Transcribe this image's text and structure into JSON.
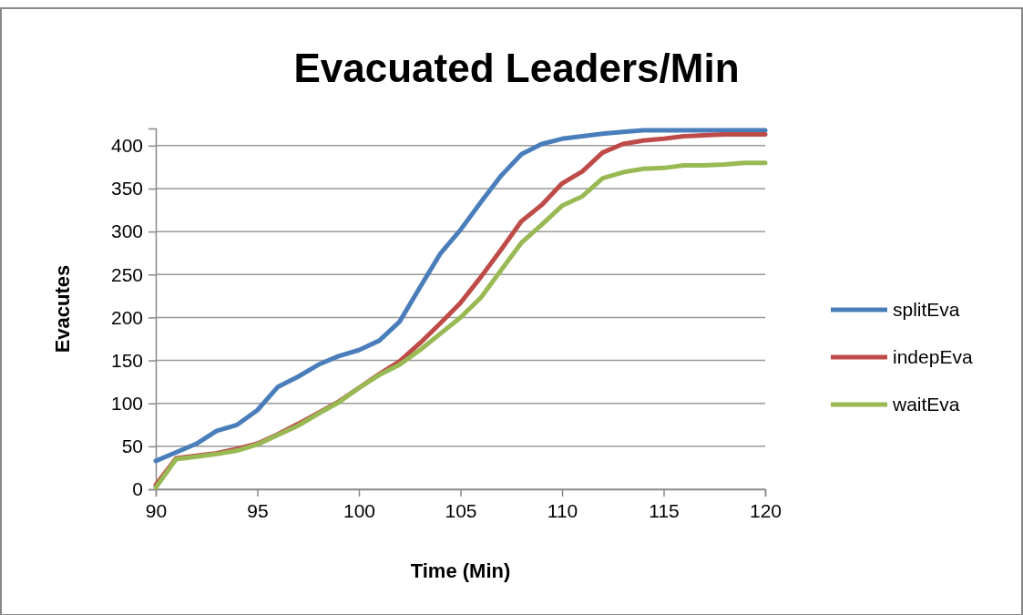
{
  "chart_data": {
    "type": "line",
    "title": "Evacuated Leaders/Min",
    "xlabel": "Time (Min)",
    "ylabel": "Evacutes",
    "x": [
      90,
      91,
      92,
      93,
      94,
      95,
      96,
      97,
      98,
      99,
      100,
      101,
      102,
      103,
      104,
      105,
      106,
      107,
      108,
      109,
      110,
      111,
      112,
      113,
      114,
      115,
      116,
      117,
      118,
      119,
      120
    ],
    "series": [
      {
        "name": "splitEva",
        "color": "#4a7ebb",
        "values": [
          33,
          43,
          53,
          68,
          75,
          92,
          119,
          131,
          145,
          155,
          162,
          173,
          195,
          235,
          274,
          302,
          334,
          365,
          390,
          402,
          408,
          411,
          414,
          416,
          418,
          418,
          418,
          418,
          418,
          418,
          418
        ]
      },
      {
        "name": "indepEva",
        "color": "#be4b48",
        "values": [
          5,
          36,
          39,
          42,
          47,
          53,
          64,
          76,
          89,
          102,
          118,
          134,
          149,
          170,
          193,
          217,
          247,
          279,
          312,
          331,
          356,
          370,
          392,
          402,
          406,
          408,
          411,
          412,
          413,
          413,
          413
        ]
      },
      {
        "name": "waitEva",
        "color": "#98b954",
        "values": [
          2,
          35,
          38,
          41,
          45,
          52,
          63,
          74,
          88,
          101,
          118,
          133,
          145,
          162,
          181,
          200,
          223,
          255,
          287,
          308,
          330,
          341,
          362,
          369,
          373,
          374,
          377,
          377,
          378,
          380,
          380
        ]
      }
    ],
    "xlim": [
      90,
      120
    ],
    "xticks": [
      90,
      95,
      100,
      105,
      110,
      115,
      120
    ],
    "ylim": [
      0,
      420
    ],
    "yticks": [
      0,
      50,
      100,
      150,
      200,
      250,
      300,
      350,
      400
    ],
    "grid": "y",
    "legend": "right",
    "marker": "none",
    "line_style": "solid"
  }
}
